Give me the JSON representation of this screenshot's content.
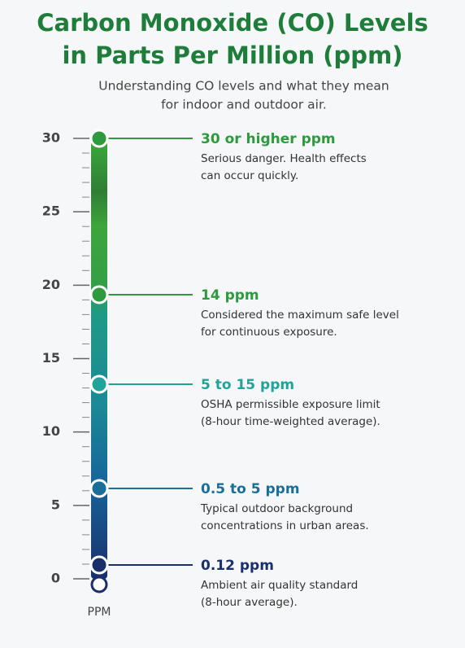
{
  "header": {
    "title": [
      "Carbon Monoxide (CO) Levels",
      "in Parts Per Million (ppm)"
    ],
    "subtitle": [
      "Understanding CO levels and what they mean",
      "for indoor and outdoor air."
    ]
  },
  "scale": {
    "ticks": [
      0,
      5,
      10,
      15,
      20,
      25,
      30
    ],
    "range": [
      0,
      30
    ],
    "unit": "PPM"
  },
  "levels": [
    {
      "label": "30 or higher ppm",
      "color": "#2e9a3e",
      "description": [
        "Serious danger. Health effects",
        "can occur quickly."
      ]
    },
    {
      "label": "14 ppm",
      "color": "#2e9a3e",
      "description": [
        "Considered the maximum safe level",
        "for continuous exposure."
      ]
    },
    {
      "label": "5 to 15 ppm",
      "color": "#1fa39a",
      "description": [
        "OSHA permissible exposure limit",
        "(8-hour time-weighted average)."
      ]
    },
    {
      "label": "0.5 to 5 ppm",
      "color": "#1a6e9a",
      "description": [
        "Typical outdoor background",
        "concentrations in urban areas."
      ]
    },
    {
      "label": "0.12 ppm",
      "color": "#1a2f6b",
      "description": [
        "Ambient air quality standard",
        "(8-hour average)."
      ]
    }
  ]
}
